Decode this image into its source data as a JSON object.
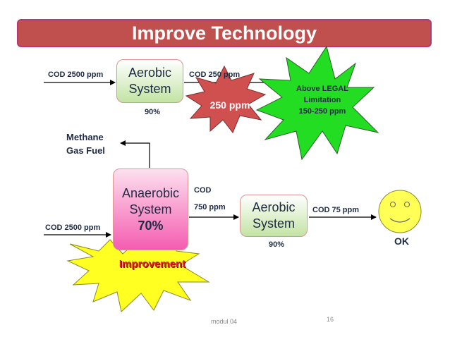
{
  "title": "Improve Technology",
  "top_row": {
    "input_label": "COD 2500 ppm",
    "aerobic_line1": "Aerobic",
    "aerobic_line2": "System",
    "aerobic_pct": "90%",
    "output_label": "COD 250 ppm",
    "burst_text": "250 ppm",
    "legal_line1": "Above LEGAL",
    "legal_line2": "Limitation",
    "legal_line3": "150-250 ppm"
  },
  "methane": {
    "line1": "Methane",
    "line2": "Gas Fuel"
  },
  "bottom_row": {
    "input_label": "COD 2500 ppm",
    "anaerobic_line1": "Anaerobic",
    "anaerobic_line2": "System",
    "anaerobic_pct": "70%",
    "mid_label_line1": "COD",
    "mid_label_line2": "750 ppm",
    "aerobic_line1": "Aerobic",
    "aerobic_line2": "System",
    "aerobic_pct": "90%",
    "output_label": "COD 75 ppm",
    "result": "OK",
    "improvement": "Improvement"
  },
  "footer": {
    "module": "modul 04",
    "page": "16"
  },
  "colors": {
    "title_fill": "#c0504d",
    "green_burst": "#22dd22",
    "red_burst": "#d05050",
    "yellow_burst": "#ffff22",
    "smiley": "#ffff55",
    "improvement_text": "#e02020"
  }
}
